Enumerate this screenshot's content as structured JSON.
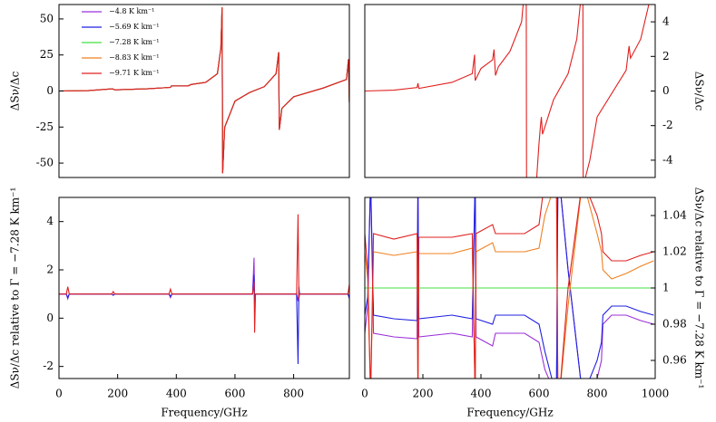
{
  "chart_data": [
    {
      "type": "line",
      "ylabel": "ΔSν/Δc",
      "yaxis": "left",
      "legend": "upper left",
      "xlim": [
        0,
        990
      ],
      "ylim": [
        -60,
        60
      ],
      "yticks": [
        -50,
        -25,
        0,
        25,
        50
      ],
      "x": [
        0,
        100,
        183,
        190,
        300,
        380,
        383,
        440,
        450,
        500,
        540,
        552,
        556,
        558,
        565,
        600,
        650,
        700,
        740,
        749,
        751,
        760,
        800,
        900,
        980,
        987,
        990
      ],
      "series": [
        {
          "name": "−4.8 K km⁻¹",
          "color": "#9b30d9",
          "values": [
            0,
            0.3,
            1.5,
            0.8,
            1.5,
            2.5,
            3.5,
            3.5,
            4.5,
            6,
            12,
            30,
            58,
            -57,
            -25,
            -7,
            -1,
            3,
            12,
            27,
            -27,
            -12,
            -4,
            2,
            8,
            22,
            -8
          ]
        },
        {
          "name": "−5.69 K km⁻¹",
          "color": "#2020e0",
          "values": [
            0,
            0.3,
            1.5,
            0.8,
            1.5,
            2.5,
            3.5,
            3.5,
            4.5,
            6,
            12,
            30,
            58,
            -57,
            -25,
            -7,
            -1,
            3,
            12,
            27,
            -27,
            -12,
            -4,
            2,
            8,
            22,
            -8
          ]
        },
        {
          "name": "−7.28 K km⁻¹",
          "color": "#40e040",
          "values": [
            0,
            0.3,
            1.5,
            0.8,
            1.5,
            2.5,
            3.5,
            3.5,
            4.5,
            6,
            12,
            30,
            58,
            -57,
            -25,
            -7,
            -1,
            3,
            12,
            27,
            -27,
            -12,
            -4,
            2,
            8,
            22,
            -8
          ]
        },
        {
          "name": "−8.83 K km⁻¹",
          "color": "#f08020",
          "values": [
            0,
            0.3,
            1.5,
            0.8,
            1.5,
            2.5,
            3.5,
            3.5,
            4.5,
            6,
            12,
            30,
            58,
            -57,
            -25,
            -7,
            -1,
            3,
            12,
            27,
            -27,
            -12,
            -4,
            2,
            8,
            22,
            -8
          ]
        },
        {
          "name": "−9.71 K km⁻¹",
          "color": "#e02020",
          "values": [
            0,
            0.3,
            1.5,
            0.8,
            1.5,
            2.5,
            3.5,
            3.5,
            4.5,
            6,
            12,
            30,
            58,
            -57,
            -25,
            -7,
            -1,
            3,
            12,
            27,
            -27,
            -12,
            -4,
            2,
            8,
            22,
            -8
          ]
        }
      ]
    },
    {
      "type": "line",
      "ylabel": "ΔSν/Δc",
      "yaxis": "right",
      "xlim": [
        0,
        1000
      ],
      "ylim": [
        -5,
        5
      ],
      "yticks": [
        -4,
        -2,
        0,
        2,
        4
      ],
      "x": [
        0,
        100,
        180,
        183,
        186,
        300,
        370,
        378,
        380,
        400,
        440,
        445,
        450,
        460,
        500,
        540,
        548,
        556,
        557,
        590,
        600,
        605,
        608,
        612,
        650,
        700,
        730,
        745,
        751,
        752,
        775,
        800,
        900,
        910,
        915,
        950,
        985
      ],
      "series": [
        {
          "name": "−9.71 K km⁻¹",
          "color": "#e02020",
          "values": [
            0,
            0.05,
            0.2,
            0.45,
            0.15,
            0.5,
            1.0,
            2.1,
            0.6,
            1.3,
            1.8,
            2.4,
            0.9,
            1.4,
            2.3,
            4.0,
            5.5,
            5.5,
            -5.5,
            -5.5,
            -3,
            -2,
            -1.5,
            -2.5,
            -0.5,
            1,
            3,
            5.5,
            5.5,
            -5.5,
            -4,
            -1.5,
            1.2,
            2.6,
            1.9,
            3,
            5.5
          ]
        }
      ]
    },
    {
      "type": "line",
      "ylabel": "ΔSν/Δc relative to Γ = −7.28 K km⁻¹",
      "yaxis": "left",
      "xlabel": "Frequency/GHz",
      "xlim": [
        0,
        990
      ],
      "ylim": [
        -2.5,
        5
      ],
      "yticks": [
        -2,
        0,
        2,
        4
      ],
      "xticks": [
        0,
        200,
        400,
        600,
        800
      ],
      "x": [
        0,
        25,
        30,
        35,
        180,
        185,
        190,
        375,
        380,
        385,
        660,
        665,
        667,
        670,
        810,
        815,
        818,
        820,
        985,
        990,
        995
      ],
      "series": [
        {
          "name": "−4.8 K km⁻¹",
          "color": "#9b30d9",
          "values": [
            1,
            1,
            0.8,
            1,
            1,
            0.95,
            1,
            1,
            0.85,
            1,
            1,
            2.5,
            0.6,
            1,
            1,
            0.7,
            1.1,
            1,
            1,
            0.8,
            1
          ]
        },
        {
          "name": "−5.69 K km⁻¹",
          "color": "#2020e0",
          "values": [
            1,
            1,
            0.85,
            1,
            1,
            0.95,
            1,
            1,
            0.9,
            1,
            1,
            1.8,
            0.7,
            1,
            1,
            -1.9,
            1.3,
            1,
            1,
            0.85,
            1
          ]
        },
        {
          "name": "−9.71 K km⁻¹",
          "color": "#e02020",
          "values": [
            1,
            1,
            1.3,
            1,
            1,
            1.1,
            1,
            1,
            1.2,
            1,
            1,
            1.5,
            -0.6,
            1,
            1,
            4.3,
            0.8,
            1,
            1,
            1.4,
            1
          ]
        }
      ]
    },
    {
      "type": "line",
      "ylabel": "ΔSν/Δc relative to Γ = −7.28 K km⁻¹",
      "yaxis": "right",
      "xlabel": "Frequency/GHz",
      "xlim": [
        0,
        1000
      ],
      "ylim": [
        0.95,
        1.05
      ],
      "yticks": [
        0.96,
        0.98,
        1,
        1.02,
        1.04
      ],
      "xticks": [
        0,
        200,
        400,
        600,
        800,
        1000
      ],
      "x": [
        0,
        10,
        20,
        30,
        100,
        180,
        183,
        186,
        300,
        370,
        380,
        383,
        440,
        450,
        460,
        550,
        600,
        620,
        660,
        665,
        670,
        700,
        750,
        800,
        815,
        820,
        850,
        900,
        950,
        995
      ],
      "series": [
        {
          "name": "−4.8 K km⁻¹",
          "color": "#9b30d9",
          "values": [
            0.975,
            0.99,
            1.06,
            0.975,
            0.973,
            0.972,
            1.06,
            0.973,
            0.975,
            0.973,
            1.06,
            0.973,
            0.968,
            0.975,
            0.975,
            0.975,
            0.97,
            0.955,
            0.94,
            1.06,
            1.06,
            1.01,
            0.94,
            0.95,
            0.96,
            0.98,
            0.985,
            0.985,
            0.982,
            0.98
          ]
        },
        {
          "name": "−5.69 K km⁻¹",
          "color": "#2020e0",
          "values": [
            0.985,
            0.995,
            1.06,
            0.985,
            0.983,
            0.982,
            1.06,
            0.983,
            0.985,
            0.983,
            1.06,
            0.983,
            0.98,
            0.985,
            0.985,
            0.985,
            0.98,
            0.965,
            0.94,
            1.06,
            1.06,
            1.01,
            0.94,
            0.96,
            0.97,
            0.985,
            0.99,
            0.99,
            0.987,
            0.985
          ]
        },
        {
          "name": "−7.28 K km⁻¹",
          "color": "#40e040",
          "values": [
            1,
            1,
            1,
            1,
            1,
            1,
            1,
            1,
            1,
            1,
            1,
            1,
            1,
            1,
            1,
            1,
            1,
            1,
            1,
            1,
            1,
            1,
            1,
            1,
            1,
            1,
            1,
            1,
            1,
            1
          ]
        },
        {
          "name": "−8.83 K km⁻¹",
          "color": "#f08020",
          "values": [
            1.02,
            1.005,
            0.94,
            1.02,
            1.018,
            1.02,
            0.94,
            1.019,
            1.019,
            1.022,
            0.94,
            1.02,
            1.025,
            1.02,
            1.02,
            1.02,
            1.022,
            1.04,
            1.06,
            0.94,
            0.94,
            0.99,
            1.06,
            1.03,
            1.02,
            1.01,
            1.005,
            1.008,
            1.012,
            1.015
          ]
        },
        {
          "name": "−9.71 K km⁻¹",
          "color": "#e02020",
          "values": [
            1.03,
            1.01,
            0.94,
            1.03,
            1.027,
            1.03,
            0.94,
            1.028,
            1.028,
            1.03,
            0.94,
            1.03,
            1.035,
            1.03,
            1.03,
            1.03,
            1.035,
            1.06,
            1.06,
            0.94,
            0.94,
            1.0,
            1.06,
            1.04,
            1.03,
            1.02,
            1.015,
            1.015,
            1.018,
            1.02
          ]
        }
      ]
    }
  ]
}
